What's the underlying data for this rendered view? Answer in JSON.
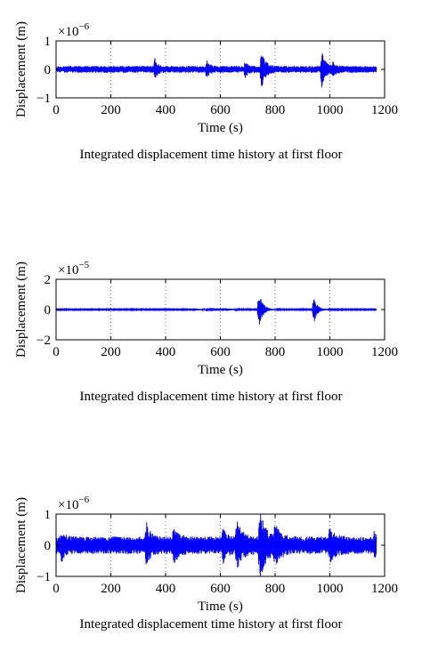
{
  "caption": "Integrated displacement time history at first floor",
  "chart_data": [
    {
      "type": "line",
      "title": "",
      "xlabel": "Time (s)",
      "ylabel": "Displacement (m)",
      "y_multiplier": "×10",
      "y_exponent": "−6",
      "xlim": [
        0,
        1200
      ],
      "ylim": [
        -1,
        1
      ],
      "xticks": [
        "0",
        "200",
        "400",
        "600",
        "800",
        "1000",
        "1200"
      ],
      "yticks": [
        "−1",
        "0",
        "1"
      ],
      "ytick_values": [
        -1,
        0,
        1
      ],
      "grid": "vertical dotted",
      "line_color": "#0000ff",
      "x_end": 1170,
      "noise_amplitude": 0.12,
      "bursts": [
        {
          "t": 360,
          "amp": 0.35,
          "width": 8
        },
        {
          "t": 550,
          "amp": 0.25,
          "width": 10
        },
        {
          "t": 690,
          "amp": 0.22,
          "width": 10
        },
        {
          "t": 750,
          "amp": 0.55,
          "width": 14
        },
        {
          "t": 970,
          "amp": 0.65,
          "width": 12
        },
        {
          "t": 1010,
          "amp": 0.2,
          "width": 10
        }
      ]
    },
    {
      "type": "line",
      "title": "",
      "xlabel": "Time (s)",
      "ylabel": "Displacement (m)",
      "y_multiplier": "×10",
      "y_exponent": "−5",
      "xlim": [
        0,
        1200
      ],
      "ylim": [
        -2,
        2
      ],
      "xticks": [
        "0",
        "200",
        "400",
        "600",
        "800",
        "1000",
        "1200"
      ],
      "yticks": [
        "−2",
        "0",
        "2"
      ],
      "ytick_values": [
        -2,
        0,
        2
      ],
      "grid": "vertical dotted",
      "line_color": "#0000ff",
      "x_end": 1170,
      "noise_amplitude": 0.03,
      "bursts": [
        {
          "t": 740,
          "amp": 1.2,
          "width": 14
        },
        {
          "t": 940,
          "amp": 1.0,
          "width": 12
        },
        {
          "t": 500,
          "amp": 0.08,
          "width": 20
        },
        {
          "t": 620,
          "amp": 0.08,
          "width": 20
        }
      ]
    },
    {
      "type": "line",
      "title": "",
      "xlabel": "Time (s)",
      "ylabel": "Displacement (m)",
      "y_multiplier": "×10",
      "y_exponent": "−6",
      "xlim": [
        0,
        1200
      ],
      "ylim": [
        -1,
        1
      ],
      "xticks": [
        "0",
        "200",
        "400",
        "600",
        "800",
        "1000",
        "1200"
      ],
      "yticks": [
        "−1",
        "0",
        "1"
      ],
      "ytick_values": [
        -1,
        0,
        1
      ],
      "grid": "vertical dotted",
      "line_color": "#0000ff",
      "x_end": 1170,
      "noise_amplitude": 0.28,
      "bursts": [
        {
          "t": 20,
          "amp": 0.3,
          "width": 12
        },
        {
          "t": 330,
          "amp": 0.5,
          "width": 14
        },
        {
          "t": 430,
          "amp": 0.35,
          "width": 18
        },
        {
          "t": 610,
          "amp": 0.35,
          "width": 14
        },
        {
          "t": 660,
          "amp": 0.55,
          "width": 20
        },
        {
          "t": 745,
          "amp": 0.9,
          "width": 20
        },
        {
          "t": 800,
          "amp": 0.4,
          "width": 20
        },
        {
          "t": 1000,
          "amp": 0.35,
          "width": 20
        },
        {
          "t": 1160,
          "amp": 0.25,
          "width": 8
        }
      ]
    }
  ]
}
